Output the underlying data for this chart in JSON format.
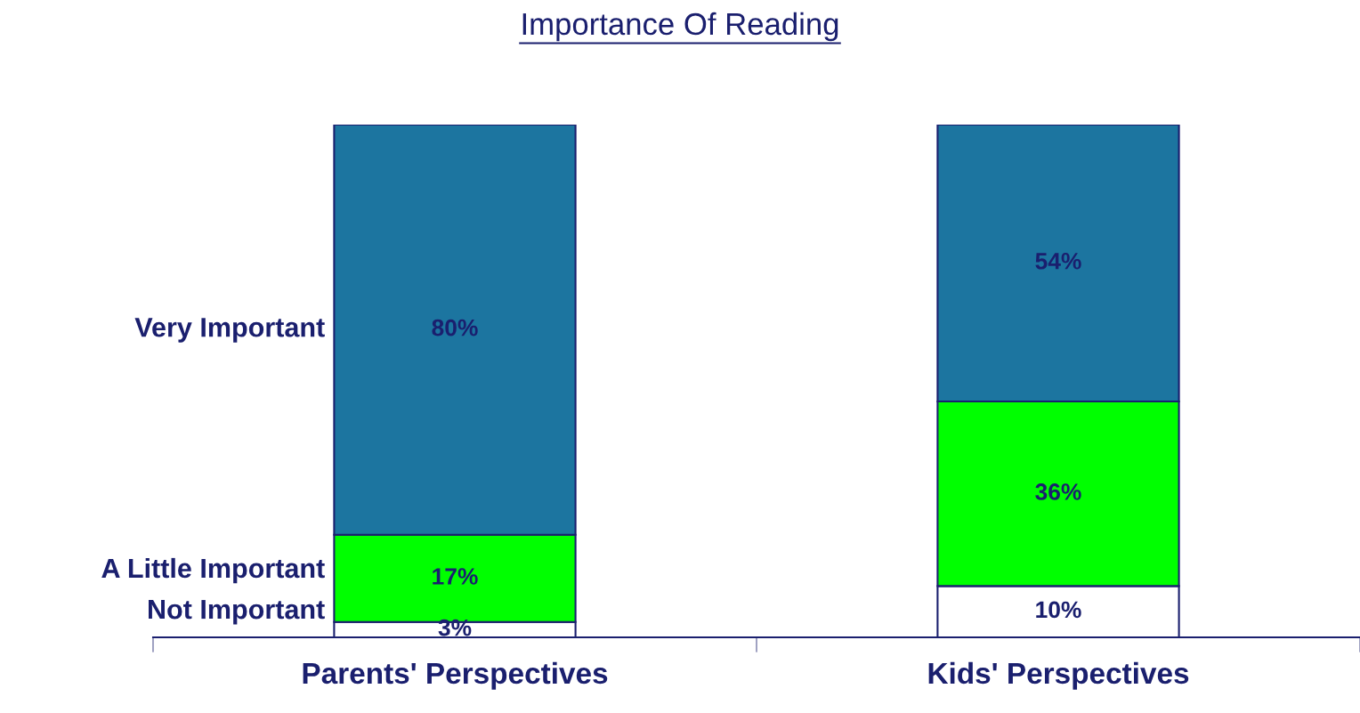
{
  "chart_data": {
    "type": "bar",
    "stacked": true,
    "title": "Importance Of Reading",
    "categories": [
      "Parents' Perspectives",
      "Kids' Perspectives"
    ],
    "ylim": [
      0,
      100
    ],
    "grid": false,
    "legend": "left",
    "series": [
      {
        "name": "Not Important",
        "color": "#ffffff",
        "values": [
          3,
          10
        ],
        "value_labels": [
          "3%",
          "10%"
        ]
      },
      {
        "name": "A Little Important",
        "color": "#00ff00",
        "values": [
          17,
          36
        ],
        "value_labels": [
          "17%",
          "36%"
        ]
      },
      {
        "name": "Very Important",
        "color": "#1c75a0",
        "values": [
          80,
          54
        ],
        "value_labels": [
          "80%",
          "54%"
        ]
      }
    ]
  }
}
